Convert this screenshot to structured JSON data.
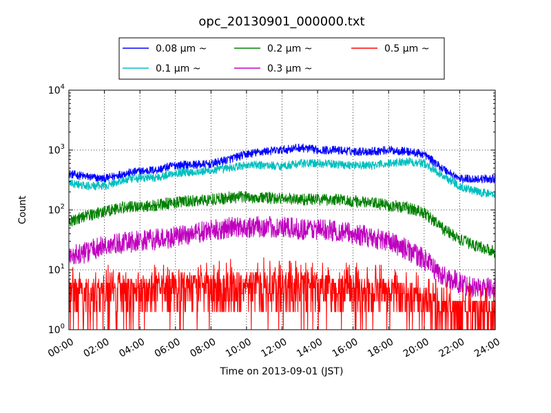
{
  "chart_data": {
    "type": "line",
    "title": "opc_20130901_000000.txt",
    "xlabel": "Time on 2013-09-01 (JST)",
    "ylabel": "Count",
    "yscale": "log",
    "ylim": [
      1,
      10000
    ],
    "xlim": [
      "00:00",
      "24:00"
    ],
    "grid": true,
    "legend_position": "top",
    "x_tick_labels": [
      "00:00",
      "02:00",
      "04:00",
      "06:00",
      "08:00",
      "10:00",
      "12:00",
      "14:00",
      "16:00",
      "18:00",
      "20:00",
      "22:00",
      "24:00"
    ],
    "y_ticks": [
      {
        "base": "10",
        "exp": "0",
        "value": 1
      },
      {
        "base": "10",
        "exp": "1",
        "value": 10
      },
      {
        "base": "10",
        "exp": "2",
        "value": 100
      },
      {
        "base": "10",
        "exp": "3",
        "value": 1000
      },
      {
        "base": "10",
        "exp": "4",
        "value": 10000
      }
    ],
    "x": [
      0,
      1,
      2,
      3,
      4,
      5,
      6,
      7,
      8,
      9,
      10,
      11,
      12,
      13,
      14,
      15,
      16,
      17,
      18,
      19,
      20,
      21,
      22,
      23,
      24
    ],
    "series": [
      {
        "name": "0.08 μm ~",
        "color": "#0000ff",
        "values": [
          400,
          360,
          330,
          400,
          440,
          470,
          560,
          570,
          580,
          700,
          850,
          950,
          1000,
          1100,
          1000,
          1000,
          950,
          950,
          1000,
          950,
          850,
          500,
          330,
          330,
          330
        ]
      },
      {
        "name": "0.1 μm ~",
        "color": "#00bfbf",
        "values": [
          280,
          250,
          250,
          310,
          340,
          350,
          420,
          430,
          450,
          500,
          560,
          560,
          540,
          600,
          600,
          580,
          560,
          550,
          600,
          650,
          600,
          380,
          250,
          200,
          180
        ]
      },
      {
        "name": "0.2 μm ~",
        "color": "#008000",
        "values": [
          65,
          80,
          95,
          110,
          115,
          120,
          135,
          140,
          150,
          160,
          165,
          160,
          155,
          150,
          150,
          150,
          140,
          130,
          120,
          110,
          90,
          50,
          32,
          25,
          20
        ]
      },
      {
        "name": "0.3 μm ~",
        "color": "#bf00bf",
        "values": [
          16,
          20,
          25,
          28,
          30,
          32,
          35,
          40,
          45,
          50,
          52,
          52,
          50,
          48,
          48,
          45,
          40,
          35,
          30,
          22,
          15,
          8,
          6,
          5,
          5
        ]
      },
      {
        "name": "0.5 μm ~",
        "color": "#ff0000",
        "values": [
          4,
          4,
          4,
          4,
          4.5,
          4.5,
          5,
          5,
          5,
          5,
          5.5,
          5.5,
          5,
          5,
          5,
          4.5,
          4.5,
          4,
          4,
          3.5,
          3,
          2,
          2,
          2,
          1.8
        ]
      }
    ]
  }
}
